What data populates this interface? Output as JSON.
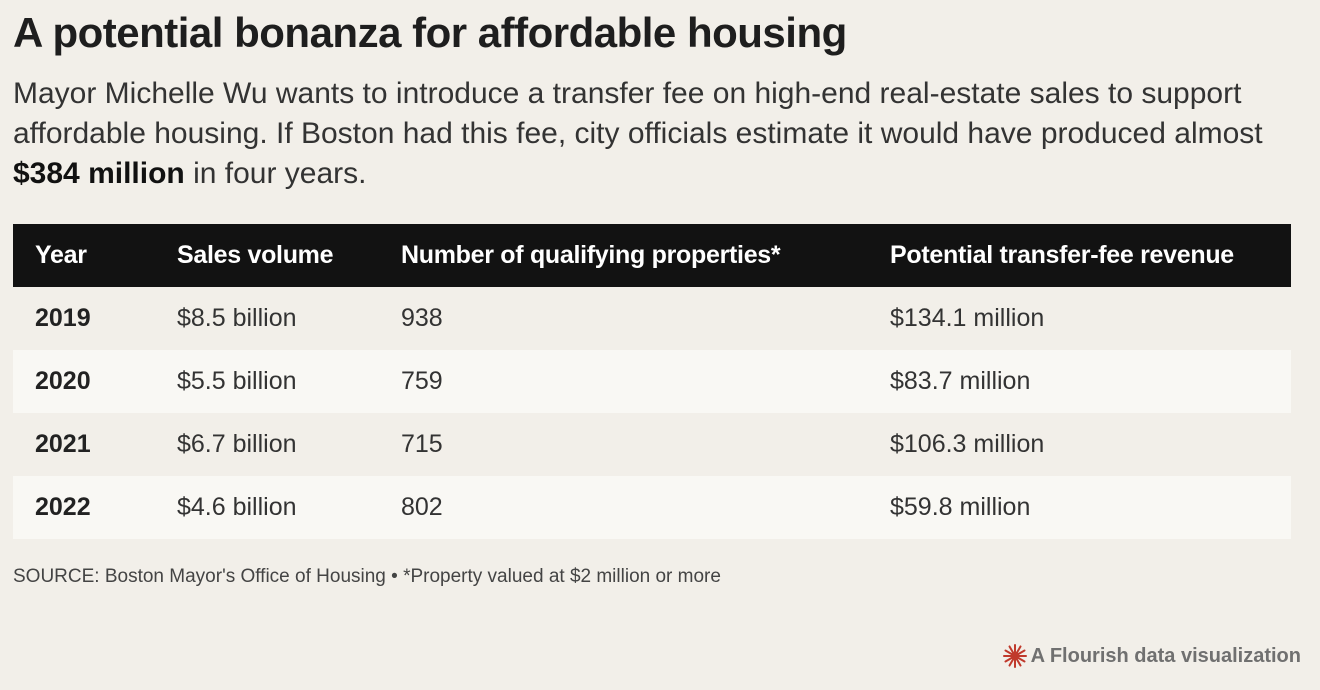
{
  "header": {
    "title": "A potential bonanza for affordable housing",
    "subtitle_before": "Mayor Michelle Wu wants to introduce a transfer fee on high-end real-estate sales to support affordable housing. If Boston had this fee, city officials estimate it would have produced almost ",
    "subtitle_bold": "$384 million",
    "subtitle_after": " in four years."
  },
  "chart_data": {
    "type": "table",
    "columns": [
      "Year",
      "Sales volume",
      "Number of qualifying properties*",
      "Potential transfer-fee revenue"
    ],
    "rows": [
      [
        "2019",
        "$8.5 billion",
        "938",
        "$134.1 million"
      ],
      [
        "2020",
        "$5.5 billion",
        "759",
        "$83.7 million"
      ],
      [
        "2021",
        "$6.7 billion",
        "715",
        "$106.3 million"
      ],
      [
        "2022",
        "$4.6 billion",
        "802",
        "$59.8 million"
      ]
    ]
  },
  "footer": {
    "source": "SOURCE: Boston Mayor's Office of Housing • *Property valued at $2 million or more",
    "credit": "A Flourish data visualization",
    "credit_icon": "flourish-logo-icon",
    "credit_icon_color": "#c0392b"
  }
}
